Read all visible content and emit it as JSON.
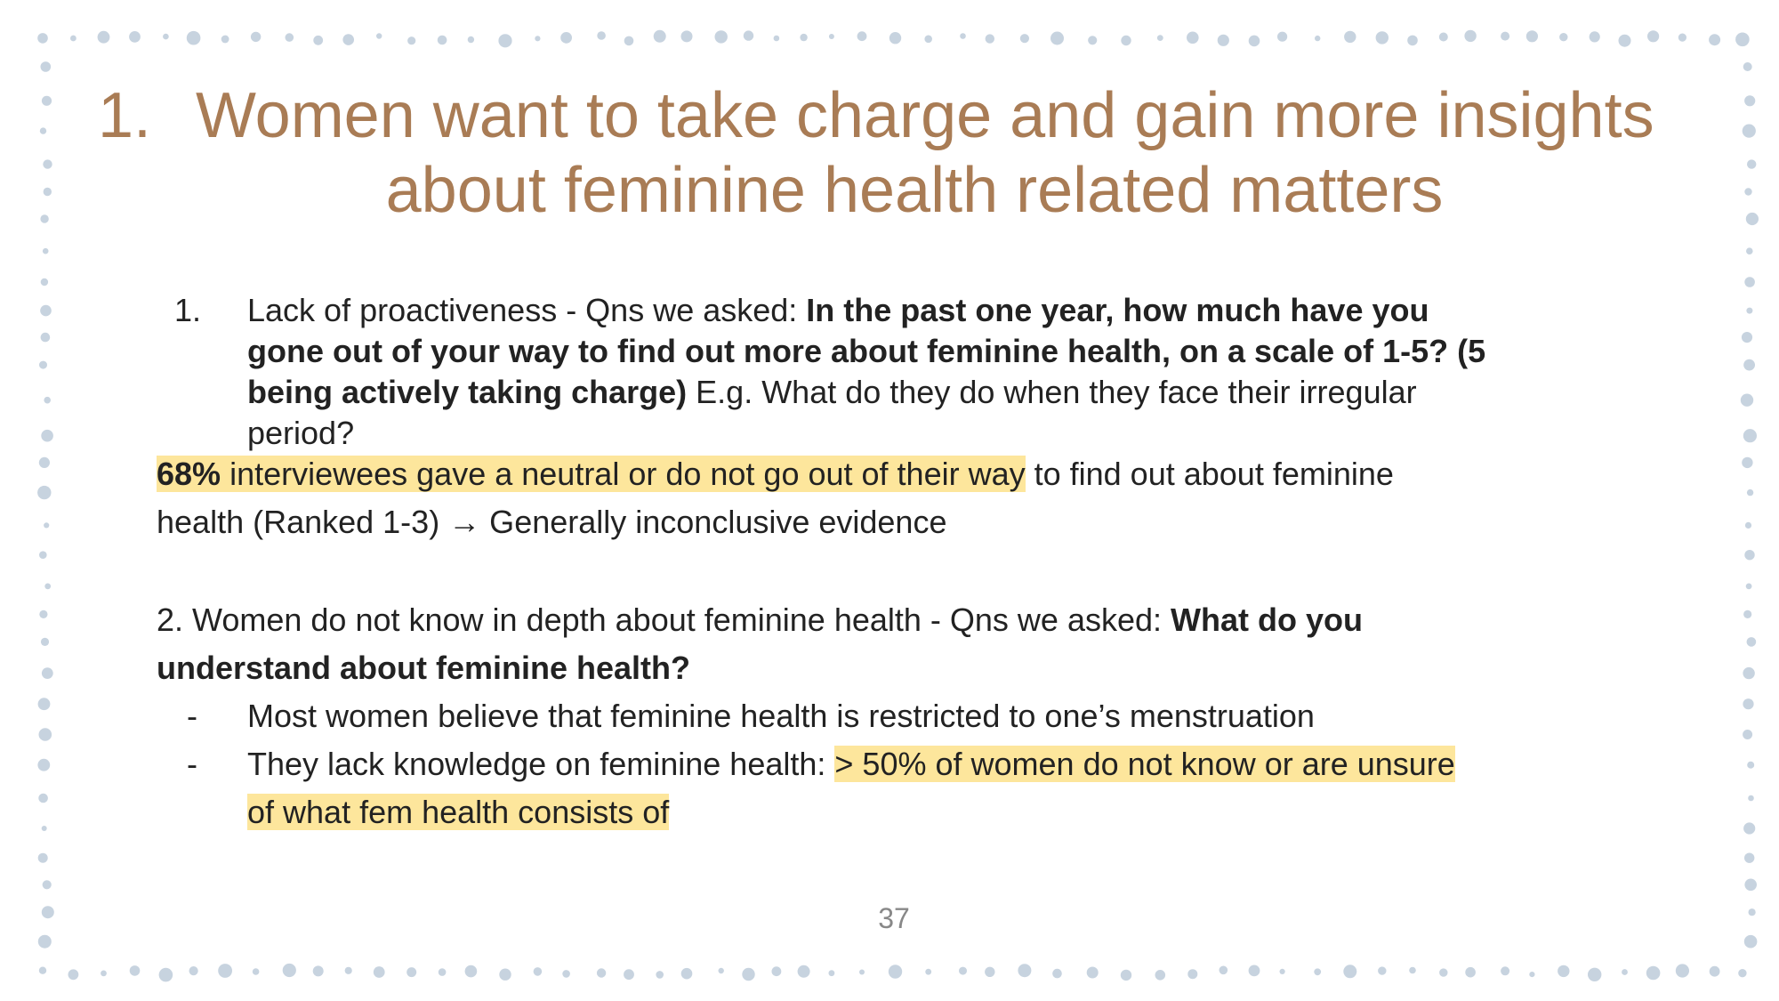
{
  "slide": {
    "title_number": "1.",
    "title_line1": "Women want to take charge and gain more insights",
    "title_line2": "about feminine health related matters",
    "page_number": "37"
  },
  "point1": {
    "number": "1.",
    "intro": "Lack of proactiveness - Qns we asked: ",
    "question_l1": "In the past one year, how much have you",
    "question_l2": "gone out of your way to find out more about feminine health, on a scale of 1-5? (5",
    "question_l3": "being actively taking charge)",
    "example_l3": " E.g. What do they do when they face their irregular",
    "example_l4": "period?",
    "stat_value": "68%",
    "stat_highlight": " interviewees gave a neutral or do not go out of their way",
    "stat_rest": " to find out about feminine",
    "stat_line2": "health (Ranked 1-3) → Generally inconclusive evidence"
  },
  "point2": {
    "heading_l1": "2.  Women do not know in depth about feminine health - Qns we asked: ",
    "question_l1": "What do you",
    "question_l2": "understand about feminine health?",
    "bullets": [
      {
        "dash": "-",
        "text": "Most women believe that feminine health is restricted to one’s menstruation"
      },
      {
        "dash": "-",
        "text": "They lack knowledge on feminine health: ",
        "highlight_l1": "> 50% of women do not know or are unsure",
        "highlight_l2": "of what fem health consists of"
      }
    ]
  },
  "colors": {
    "title": "#a97c55",
    "highlight": "#fde69c",
    "dots": "#c7d3df"
  }
}
